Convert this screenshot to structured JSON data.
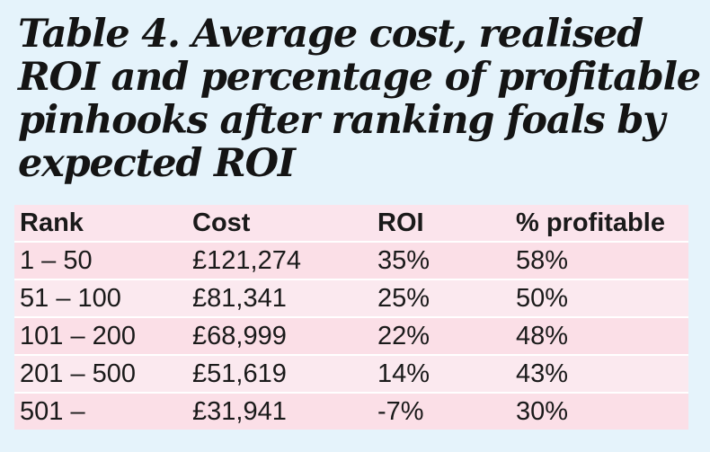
{
  "title_lines": [
    "Table 4. Average cost, realised",
    "ROI and percentage of profitable",
    "pinhooks after ranking foals by",
    "expected ROI"
  ],
  "table": {
    "headers": [
      "Rank",
      "Cost",
      "ROI",
      "% profitable"
    ],
    "rows": [
      [
        "1 – 50",
        "£121,274",
        "35%",
        "58%"
      ],
      [
        "51 – 100",
        "£81,341",
        "25%",
        "50%"
      ],
      [
        "101 – 200",
        "£68,999",
        "22%",
        "48%"
      ],
      [
        "201 – 500",
        "£51,619",
        "14%",
        "43%"
      ],
      [
        "501 –",
        "£31,941",
        "-7%",
        "30%"
      ]
    ]
  }
}
